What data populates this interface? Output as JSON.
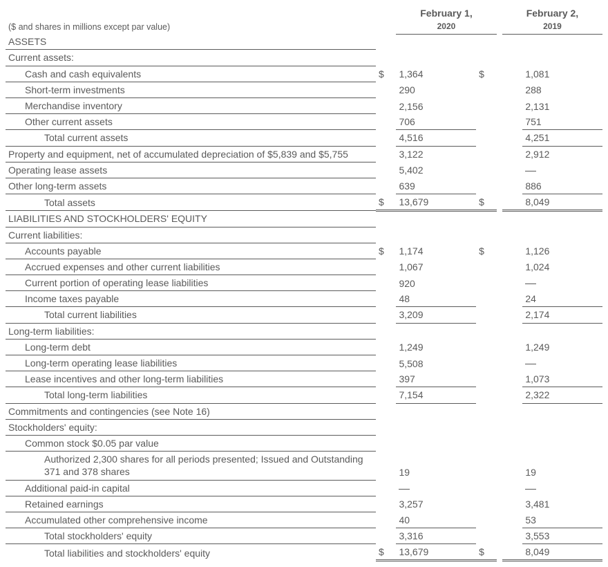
{
  "header": {
    "note": "($ and shares in millions except par value)",
    "col1_line1": "February 1,",
    "col1_line2": "2020",
    "col2_line1": "February 2,",
    "col2_line2": "2019"
  },
  "sections": {
    "assets": "ASSETS",
    "current_assets": "Current assets:",
    "liab_eq": "LIABILITIES AND STOCKHOLDERS' EQUITY",
    "current_liab": "Current liabilities:",
    "lt_liab": "Long-term liabilities:",
    "commit": "Commitments and contingencies (see Note 16)",
    "se": "Stockholders' equity:"
  },
  "rows": {
    "cash": {
      "label": "Cash and cash equivalents",
      "s1": "$",
      "v1": "1,364",
      "s2": "$",
      "v2": "1,081"
    },
    "sti": {
      "label": "Short-term investments",
      "v1": "290",
      "v2": "288"
    },
    "inv": {
      "label": "Merchandise inventory",
      "v1": "2,156",
      "v2": "2,131"
    },
    "oca": {
      "label": "Other current assets",
      "v1": "706",
      "v2": "751"
    },
    "tca": {
      "label": "Total current assets",
      "v1": "4,516",
      "v2": "4,251"
    },
    "ppe": {
      "label": "Property and equipment, net of accumulated depreciation of $5,839 and $5,755",
      "v1": "3,122",
      "v2": "2,912"
    },
    "ola": {
      "label": "Operating lease assets",
      "v1": "5,402",
      "v2": "—"
    },
    "olta": {
      "label": "Other long-term assets",
      "v1": "639",
      "v2": "886"
    },
    "ta": {
      "label": "Total assets",
      "s1": "$",
      "v1": "13,679",
      "s2": "$",
      "v2": "8,049"
    },
    "ap": {
      "label": "Accounts payable",
      "s1": "$",
      "v1": "1,174",
      "s2": "$",
      "v2": "1,126"
    },
    "accr": {
      "label": "Accrued expenses and other current liabilities",
      "v1": "1,067",
      "v2": "1,024"
    },
    "cpoll": {
      "label": "Current portion of operating lease liabilities",
      "v1": "920",
      "v2": "—"
    },
    "itp": {
      "label": "Income taxes payable",
      "v1": "48",
      "v2": "24"
    },
    "tcl": {
      "label": "Total current liabilities",
      "v1": "3,209",
      "v2": "2,174"
    },
    "ltd": {
      "label": "Long-term debt",
      "v1": "1,249",
      "v2": "1,249"
    },
    "ltoll": {
      "label": "Long-term operating lease liabilities",
      "v1": "5,508",
      "v2": "—"
    },
    "li": {
      "label": "Lease incentives and other long-term liabilities",
      "v1": "397",
      "v2": "1,073"
    },
    "tltl": {
      "label": "Total long-term liabilities",
      "v1": "7,154",
      "v2": "2,322"
    },
    "cs": {
      "label": "Common stock $0.05 par value"
    },
    "auth": {
      "label": "Authorized 2,300 shares for all periods presented; Issued and Outstanding 371 and 378 shares",
      "v1": "19",
      "v2": "19"
    },
    "apic": {
      "label": "Additional paid-in capital",
      "v1": "—",
      "v2": "—"
    },
    "re": {
      "label": "Retained earnings",
      "v1": "3,257",
      "v2": "3,481"
    },
    "aoci": {
      "label": "Accumulated other comprehensive income",
      "v1": "40",
      "v2": "53"
    },
    "tse": {
      "label": "Total stockholders' equity",
      "v1": "3,316",
      "v2": "3,553"
    },
    "tlse": {
      "label": "Total liabilities and stockholders' equity",
      "s1": "$",
      "v1": "13,679",
      "s2": "$",
      "v2": "8,049"
    }
  }
}
